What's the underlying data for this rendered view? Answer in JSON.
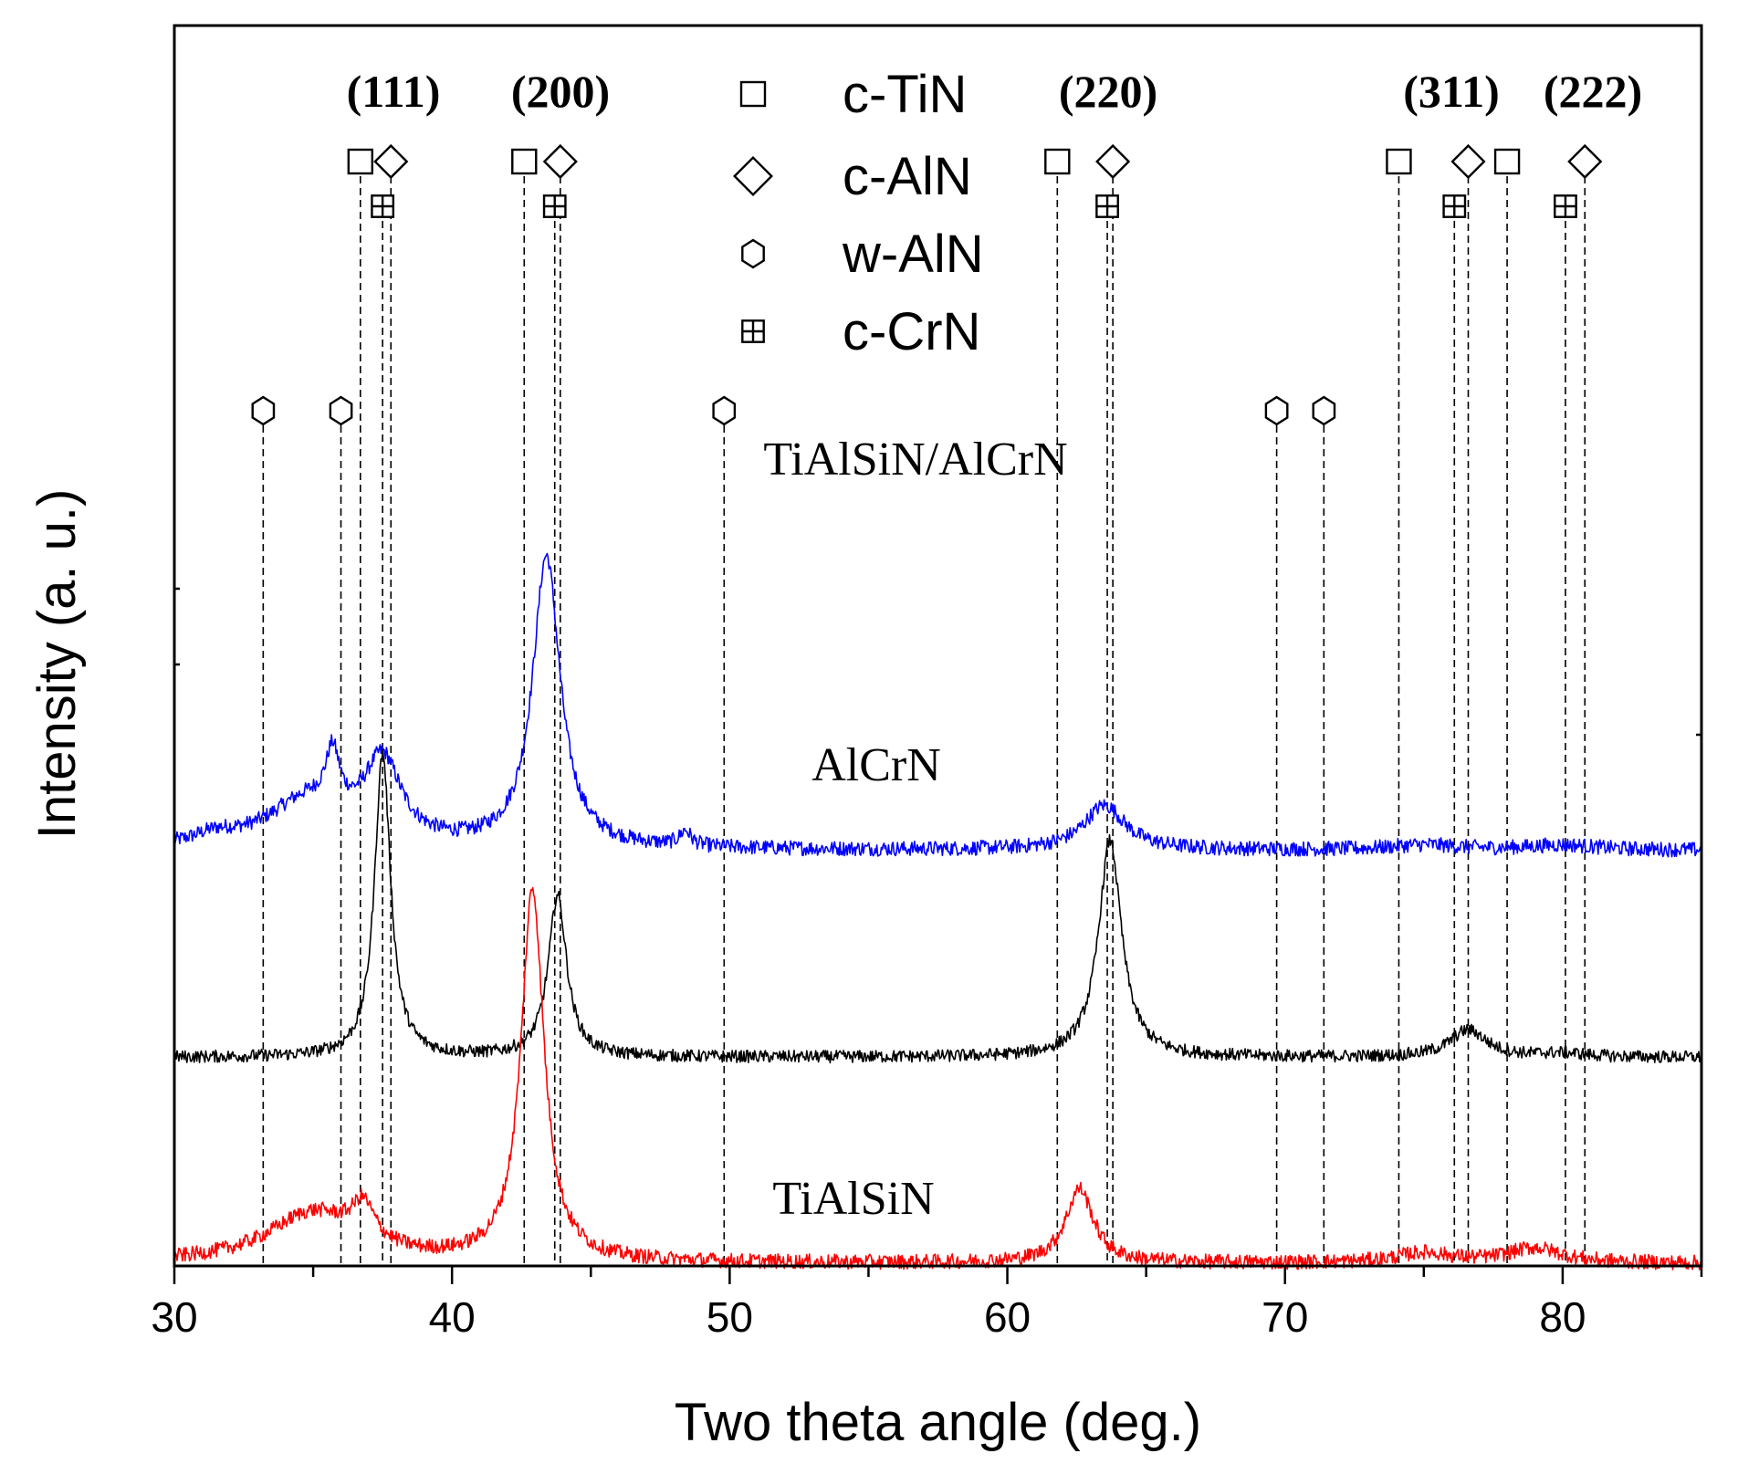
{
  "chart_data": {
    "type": "line",
    "title": "",
    "xlabel": "Two theta angle (deg.)",
    "ylabel": "Intensity (a. u.)",
    "xlim": [
      30,
      85
    ],
    "ylim": [
      0,
      1
    ],
    "x_ticks": [
      30,
      40,
      50,
      60,
      70,
      80
    ],
    "y_ticks_shown": false,
    "grid": false,
    "legend_placement": "top-center",
    "legend": [
      {
        "label": "c-TiN",
        "marker": "square"
      },
      {
        "label": "c-AlN",
        "marker": "diamond"
      },
      {
        "label": "w-AlN",
        "marker": "hexagon"
      },
      {
        "label": "c-CrN",
        "marker": "square-crossed"
      }
    ],
    "planes": [
      {
        "label": "(111)",
        "x": 37.8
      },
      {
        "label": "(200)",
        "x": 43.8
      },
      {
        "label": "(220)",
        "x": 63.4
      },
      {
        "label": "(311)",
        "x": 75.8
      },
      {
        "label": "(222)",
        "x": 80.8
      }
    ],
    "reference_lines": {
      "c-TiN": [
        36.7,
        42.6,
        61.8,
        74.1,
        78.0
      ],
      "c-AlN": [
        37.8,
        43.9,
        63.8,
        76.6,
        80.8
      ],
      "w-AlN": [
        33.2,
        36.0,
        49.8,
        69.7,
        71.4
      ],
      "c-CrN": [
        37.5,
        43.7,
        63.6,
        76.1,
        80.1
      ]
    },
    "series": [
      {
        "name": "TiAlSiN/AlCrN",
        "color": "#0000ff",
        "baseline": 0.335,
        "noise": 0.006,
        "peaks": [
          {
            "x": 31.5,
            "h": 0.008,
            "w": 1.0
          },
          {
            "x": 34.8,
            "h": 0.038,
            "w": 1.8
          },
          {
            "x": 35.7,
            "h": 0.045,
            "w": 0.3
          },
          {
            "x": 37.5,
            "h": 0.065,
            "w": 0.8
          },
          {
            "x": 43.4,
            "h": 0.235,
            "w": 0.6
          },
          {
            "x": 48.4,
            "h": 0.012,
            "w": 0.25
          },
          {
            "x": 63.5,
            "h": 0.036,
            "w": 0.9
          },
          {
            "x": 75.0,
            "h": 0.004,
            "w": 1.5
          },
          {
            "x": 80.0,
            "h": 0.004,
            "w": 1.5
          }
        ]
      },
      {
        "name": "AlCrN",
        "color": "#000000",
        "baseline": 0.168,
        "noise": 0.005,
        "peaks": [
          {
            "x": 37.5,
            "h": 0.245,
            "w": 0.35
          },
          {
            "x": 43.8,
            "h": 0.13,
            "w": 0.4
          },
          {
            "x": 63.7,
            "h": 0.175,
            "w": 0.5
          },
          {
            "x": 76.6,
            "h": 0.022,
            "w": 0.8
          },
          {
            "x": 80.0,
            "h": 0.003,
            "w": 1.0
          }
        ]
      },
      {
        "name": "TiAlSiN",
        "color": "#ff0000",
        "baseline": 0.002,
        "noise": 0.006,
        "peaks": [
          {
            "x": 35.0,
            "h": 0.04,
            "w": 2.0
          },
          {
            "x": 36.8,
            "h": 0.03,
            "w": 0.5
          },
          {
            "x": 42.9,
            "h": 0.3,
            "w": 0.5
          },
          {
            "x": 62.6,
            "h": 0.06,
            "w": 0.6
          },
          {
            "x": 75.0,
            "h": 0.008,
            "w": 1.2
          },
          {
            "x": 79.0,
            "h": 0.012,
            "w": 1.2
          }
        ]
      }
    ]
  }
}
